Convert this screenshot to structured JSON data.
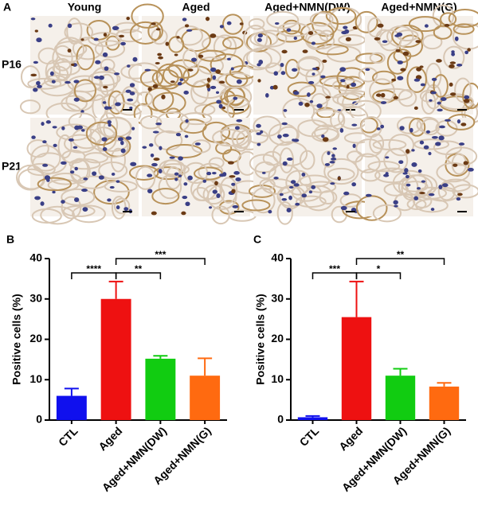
{
  "panel_a": {
    "label": "A",
    "columns": [
      "Young",
      "Aged",
      "Aged+NMN(DW)",
      "Aged+NMN(G)"
    ],
    "rows": [
      "P16",
      "P21"
    ]
  },
  "chart_data": [
    {
      "type": "bar",
      "panel_label": "B",
      "y_label": "Positive cells (%)",
      "categories": [
        "CTL",
        "Aged",
        "Aged+NMN(DW)",
        "Aged+NMN(G)"
      ],
      "values": [
        6,
        30,
        15.2,
        11
      ],
      "errors": [
        1.8,
        4.3,
        0.7,
        4.3
      ],
      "colors": [
        "#1010ee",
        "#ee1111",
        "#11cc11",
        "#ff6a10"
      ],
      "ylim": [
        0,
        40
      ],
      "yticks": [
        0,
        10,
        20,
        30,
        40
      ],
      "brackets": [
        {
          "between": [
            "CTL",
            "Aged"
          ],
          "label": "****"
        },
        {
          "between": [
            "Aged",
            "Aged+NMN(DW)"
          ],
          "label": "**"
        },
        {
          "between": [
            "Aged",
            "Aged+NMN(G)"
          ],
          "label": "***"
        }
      ]
    },
    {
      "type": "bar",
      "panel_label": "C",
      "y_label": "Positive cells (%)",
      "categories": [
        "CTL",
        "Aged",
        "Aged+NMN(DW)",
        "Aged+NMN(G)"
      ],
      "values": [
        0.7,
        25.5,
        11,
        8.3
      ],
      "errors": [
        0.3,
        8.8,
        1.7,
        0.9
      ],
      "colors": [
        "#1010ee",
        "#ee1111",
        "#11cc11",
        "#ff6a10"
      ],
      "ylim": [
        0,
        40
      ],
      "yticks": [
        0,
        10,
        20,
        30,
        40
      ],
      "brackets": [
        {
          "between": [
            "CTL",
            "Aged"
          ],
          "label": "***"
        },
        {
          "between": [
            "Aged",
            "Aged+NMN(DW)"
          ],
          "label": "*"
        },
        {
          "between": [
            "Aged",
            "Aged+NMN(G)"
          ],
          "label": "**"
        }
      ]
    }
  ]
}
